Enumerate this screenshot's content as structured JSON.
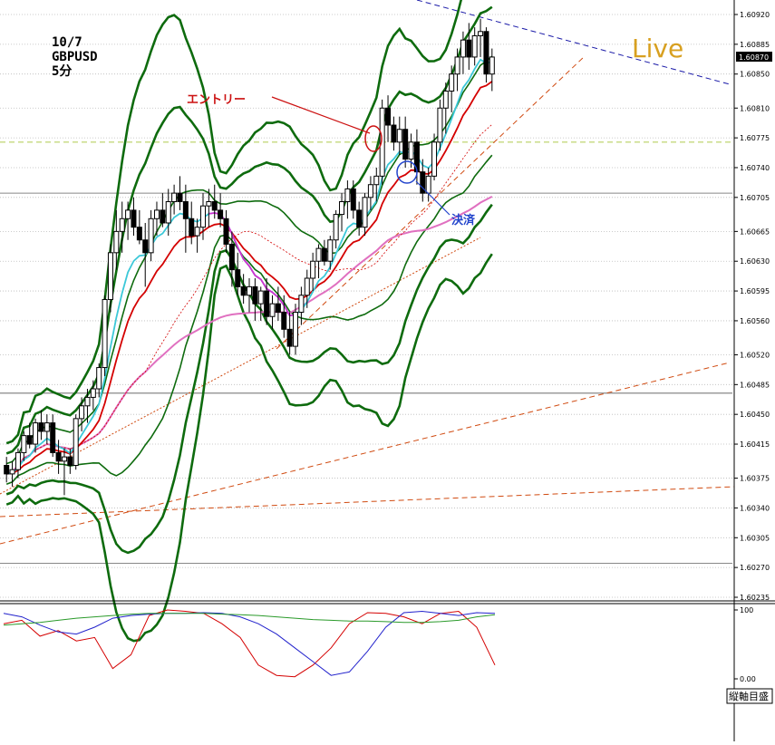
{
  "header": {
    "date": "10/7",
    "symbol": "GBPUSD",
    "timeframe": "5分"
  },
  "annotations": {
    "live": "Live",
    "entry": "エントリー",
    "exit": "決済",
    "current_price": "1.60870",
    "osc_button": "縦軸目盛"
  },
  "colors": {
    "background": "#ffffff",
    "bollinger": "#0e6b0e",
    "ma_red": "#d40000",
    "ma_cyan": "#3cc8d8",
    "ma_magenta": "#d030d0",
    "ma_pink": "#e070c0",
    "trend_orange": "#d04a10",
    "trend_blue": "#1a1aa8",
    "entry_red": "#cc1111",
    "exit_blue": "#2244cc",
    "live_gold": "#d8a020",
    "grid": "#bbbbbb"
  },
  "chart_data": [
    {
      "type": "candlestick",
      "title": "",
      "ylim": [
        1.60235,
        1.6092
      ],
      "y_ticks": [
        "1.60920",
        "1.60885",
        "1.60850",
        "1.60810",
        "1.60775",
        "1.60740",
        "1.60705",
        "1.60665",
        "1.60630",
        "1.60595",
        "1.60560",
        "1.60520",
        "1.60485",
        "1.60450",
        "1.60415",
        "1.60375",
        "1.60340",
        "1.60305",
        "1.60270",
        "1.60235"
      ],
      "candles_ohlc": [
        [
          1.6039,
          1.604,
          1.6037,
          1.6038
        ],
        [
          1.6038,
          1.60395,
          1.60365,
          1.60385
        ],
        [
          1.60385,
          1.6041,
          1.60375,
          1.60405
        ],
        [
          1.60405,
          1.6043,
          1.60395,
          1.60425
        ],
        [
          1.60425,
          1.6044,
          1.6041,
          1.60415
        ],
        [
          1.60415,
          1.60445,
          1.60405,
          1.6044
        ],
        [
          1.6044,
          1.60455,
          1.6042,
          1.6043
        ],
        [
          1.6043,
          1.6045,
          1.60415,
          1.6044
        ],
        [
          1.6044,
          1.6045,
          1.604,
          1.60405
        ],
        [
          1.60405,
          1.6042,
          1.6038,
          1.60395
        ],
        [
          1.60395,
          1.6041,
          1.60355,
          1.604
        ],
        [
          1.604,
          1.6041,
          1.6038,
          1.6039
        ],
        [
          1.6039,
          1.6045,
          1.60385,
          1.60445
        ],
        [
          1.60445,
          1.6047,
          1.6043,
          1.6046
        ],
        [
          1.6046,
          1.6048,
          1.6044,
          1.6047
        ],
        [
          1.6047,
          1.6049,
          1.60455,
          1.6048
        ],
        [
          1.6048,
          1.6051,
          1.6047,
          1.60505
        ],
        [
          1.60505,
          1.6059,
          1.60495,
          1.60585
        ],
        [
          1.60585,
          1.6065,
          1.6057,
          1.6064
        ],
        [
          1.6064,
          1.6069,
          1.6062,
          1.60665
        ],
        [
          1.60665,
          1.607,
          1.6064,
          1.6068
        ],
        [
          1.6068,
          1.607,
          1.60655,
          1.6069
        ],
        [
          1.6069,
          1.60705,
          1.6066,
          1.6067
        ],
        [
          1.6067,
          1.6069,
          1.6065,
          1.60655
        ],
        [
          1.60655,
          1.60675,
          1.606,
          1.6064
        ],
        [
          1.6064,
          1.6069,
          1.6063,
          1.6068
        ],
        [
          1.6068,
          1.607,
          1.6066,
          1.6069
        ],
        [
          1.6069,
          1.6071,
          1.6067,
          1.60675
        ],
        [
          1.60675,
          1.60715,
          1.6066,
          1.607
        ],
        [
          1.607,
          1.6072,
          1.60685,
          1.6071
        ],
        [
          1.6071,
          1.6073,
          1.6069,
          1.607
        ],
        [
          1.607,
          1.6072,
          1.6064,
          1.6068
        ],
        [
          1.6068,
          1.607,
          1.6065,
          1.6066
        ],
        [
          1.6066,
          1.6068,
          1.6064,
          1.6067
        ],
        [
          1.6067,
          1.6071,
          1.60655,
          1.60695
        ],
        [
          1.60695,
          1.60715,
          1.6067,
          1.607
        ],
        [
          1.607,
          1.6072,
          1.6068,
          1.6069
        ],
        [
          1.6069,
          1.6071,
          1.6067,
          1.6068
        ],
        [
          1.6068,
          1.6069,
          1.6064,
          1.6065
        ],
        [
          1.6065,
          1.60665,
          1.606,
          1.6062
        ],
        [
          1.6062,
          1.6064,
          1.6059,
          1.606
        ],
        [
          1.606,
          1.60615,
          1.6058,
          1.6059
        ],
        [
          1.6059,
          1.6061,
          1.6057,
          1.606
        ],
        [
          1.606,
          1.6061,
          1.6056,
          1.6058
        ],
        [
          1.6058,
          1.606,
          1.6056,
          1.60595
        ],
        [
          1.60595,
          1.6061,
          1.60555,
          1.60565
        ],
        [
          1.60565,
          1.6059,
          1.6055,
          1.6058
        ],
        [
          1.6058,
          1.606,
          1.6056,
          1.6057
        ],
        [
          1.6057,
          1.6059,
          1.6054,
          1.6055
        ],
        [
          1.6055,
          1.6057,
          1.6052,
          1.6053
        ],
        [
          1.6053,
          1.6058,
          1.6052,
          1.6057
        ],
        [
          1.6057,
          1.606,
          1.60555,
          1.6059
        ],
        [
          1.6059,
          1.6062,
          1.60575,
          1.6061
        ],
        [
          1.6061,
          1.6064,
          1.60595,
          1.6063
        ],
        [
          1.6063,
          1.6065,
          1.6061,
          1.60645
        ],
        [
          1.60645,
          1.60655,
          1.60625,
          1.6063
        ],
        [
          1.6063,
          1.6066,
          1.6062,
          1.60655
        ],
        [
          1.60655,
          1.6069,
          1.60645,
          1.60685
        ],
        [
          1.60685,
          1.6071,
          1.60665,
          1.607
        ],
        [
          1.607,
          1.60725,
          1.6068,
          1.60715
        ],
        [
          1.60715,
          1.60725,
          1.6068,
          1.6069
        ],
        [
          1.6069,
          1.607,
          1.6066,
          1.6067
        ],
        [
          1.6067,
          1.6071,
          1.6066,
          1.60705
        ],
        [
          1.60705,
          1.6073,
          1.6069,
          1.6072
        ],
        [
          1.6072,
          1.6074,
          1.607,
          1.6073
        ],
        [
          1.6073,
          1.6082,
          1.6072,
          1.6081
        ],
        [
          1.6081,
          1.60825,
          1.6077,
          1.6079
        ],
        [
          1.6079,
          1.608,
          1.6076,
          1.6077
        ],
        [
          1.6077,
          1.608,
          1.60755,
          1.60785
        ],
        [
          1.60785,
          1.608,
          1.6074,
          1.6075
        ],
        [
          1.6075,
          1.6078,
          1.6074,
          1.6077
        ],
        [
          1.6077,
          1.60785,
          1.6072,
          1.60735
        ],
        [
          1.60735,
          1.6075,
          1.607,
          1.6071
        ],
        [
          1.6071,
          1.6074,
          1.607,
          1.6073
        ],
        [
          1.6073,
          1.6078,
          1.60725,
          1.6077
        ],
        [
          1.6077,
          1.6082,
          1.6076,
          1.6081
        ],
        [
          1.6081,
          1.6084,
          1.6078,
          1.6083
        ],
        [
          1.6083,
          1.6086,
          1.60805,
          1.6085
        ],
        [
          1.6085,
          1.6088,
          1.6083,
          1.6087
        ],
        [
          1.6087,
          1.609,
          1.6085,
          1.6089
        ],
        [
          1.6089,
          1.6091,
          1.60855,
          1.6087
        ],
        [
          1.6087,
          1.60905,
          1.6086,
          1.60895
        ],
        [
          1.60895,
          1.60915,
          1.6087,
          1.609
        ],
        [
          1.609,
          1.60905,
          1.6084,
          1.6085
        ],
        [
          1.6085,
          1.6088,
          1.6083,
          1.6087
        ]
      ]
    },
    {
      "type": "line",
      "title": "",
      "ylim": [
        0,
        100
      ],
      "y_ticks": [
        "100",
        "0.00"
      ],
      "series": [
        {
          "values": [
            80,
            85,
            62,
            70,
            55,
            60,
            15,
            35,
            92,
            100,
            98,
            95,
            80,
            60,
            20,
            5,
            3,
            20,
            45,
            80,
            96,
            95,
            90,
            80,
            95,
            98,
            75,
            20
          ]
        },
        {
          "values": [
            95,
            90,
            78,
            68,
            65,
            75,
            88,
            92,
            94,
            95,
            95,
            96,
            95,
            90,
            80,
            65,
            45,
            25,
            5,
            10,
            40,
            75,
            96,
            98,
            95,
            92,
            96,
            95
          ]
        },
        {
          "values": [
            78,
            80,
            82,
            85,
            88,
            90,
            92,
            94,
            95,
            95,
            95,
            95,
            94,
            93,
            92,
            90,
            88,
            86,
            85,
            84,
            84,
            83,
            82,
            82,
            83,
            85,
            90,
            93
          ]
        }
      ]
    }
  ]
}
